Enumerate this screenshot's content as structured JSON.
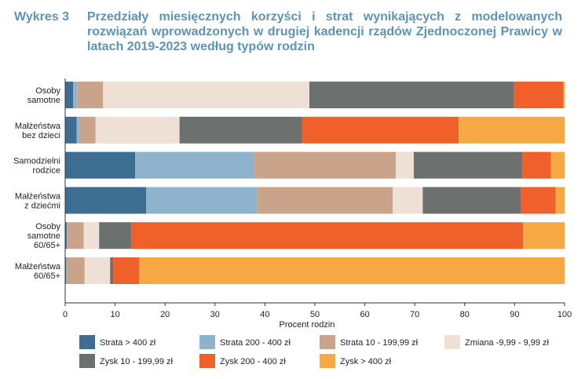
{
  "title": {
    "prefix": "Wykres 3",
    "text": "Przedziały miesięcznych korzyści i strat wynikających z modelowanych rozwiązań wprowadzonych w drugiej kadencji rządów Zjednoczonej Prawicy w latach 2019-2023 według typów rodzin"
  },
  "chart_data": {
    "type": "bar",
    "orientation": "horizontal",
    "stacked": true,
    "categories": [
      [
        "Osoby",
        "samotne"
      ],
      [
        "Małżeństwa",
        "bez dzieci"
      ],
      [
        "Samodzielni",
        "rodzice"
      ],
      [
        "Małżeństwa",
        "z dziećmi"
      ],
      [
        "Osoby",
        "samotne",
        "60/65+"
      ],
      [
        "Małżeństwa",
        "60/65+"
      ]
    ],
    "series": [
      {
        "name": "Strata > 400 zł",
        "color": "#3d6d90",
        "values": [
          1.6,
          2.3,
          14.0,
          16.2,
          0.3,
          0.2
        ]
      },
      {
        "name": "Strata 200 - 400 zł",
        "color": "#8fb3cd",
        "values": [
          0.8,
          0.6,
          23.9,
          22.2,
          0.2,
          0.2
        ]
      },
      {
        "name": "Strata 10 - 199,99 zł",
        "color": "#c9a48b",
        "values": [
          5.2,
          3.2,
          28.3,
          27.2,
          3.2,
          3.5
        ]
      },
      {
        "name": "Zmiana -9,99 - 9,99 zł",
        "color": "#efe0d5",
        "values": [
          41.3,
          16.8,
          3.6,
          6.0,
          3.1,
          5.1
        ]
      },
      {
        "name": "Zysk 10 - 199,99 zł",
        "color": "#6c706e",
        "values": [
          41.0,
          24.5,
          21.7,
          19.6,
          6.4,
          0.6
        ]
      },
      {
        "name": "Zysk 200 - 400 zł",
        "color": "#f0602a",
        "values": [
          9.8,
          31.4,
          5.8,
          7.0,
          78.5,
          5.2
        ]
      },
      {
        "name": "Zysk > 400 zł",
        "color": "#f5a843",
        "values": [
          0.3,
          21.2,
          2.7,
          1.8,
          8.3,
          85.2
        ]
      }
    ],
    "xlabel": "Procent rodzin",
    "xlim": [
      0,
      100
    ],
    "xticks": [
      0,
      10,
      20,
      30,
      40,
      50,
      60,
      70,
      80,
      90,
      100
    ],
    "grid": false,
    "legend_position": "bottom"
  }
}
